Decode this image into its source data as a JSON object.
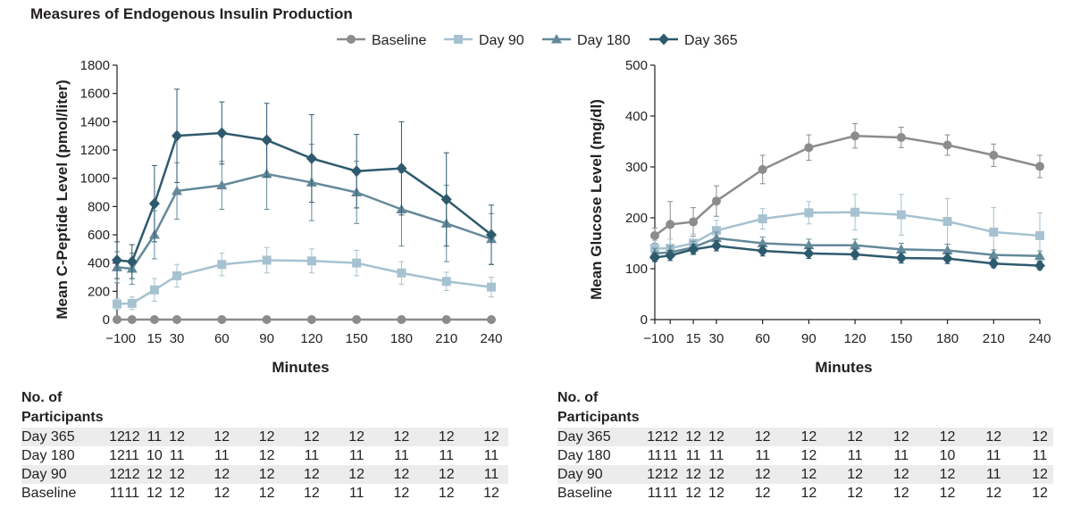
{
  "title": "Measures of Endogenous Insulin Production",
  "legend": [
    {
      "name": "Baseline",
      "color": "#8c8c8c",
      "marker": "circle"
    },
    {
      "name": "Day 90",
      "color": "#a6c2d0",
      "marker": "square"
    },
    {
      "name": "Day 180",
      "color": "#64899a",
      "marker": "triangle"
    },
    {
      "name": "Day 365",
      "color": "#2e5a6e",
      "marker": "diamond"
    }
  ],
  "chart_data": [
    {
      "id": "cpeptide",
      "type": "line",
      "title": "",
      "xlabel": "Minutes",
      "ylabel": "Mean C-Peptide Level (pmol/liter)",
      "x": [
        -10,
        0,
        15,
        30,
        60,
        90,
        120,
        150,
        180,
        210,
        240
      ],
      "x_tick_labels": [
        "−10",
        "0",
        "15",
        "30",
        "60",
        "90",
        "120",
        "150",
        "180",
        "210",
        "240"
      ],
      "xlim": [
        -10,
        240
      ],
      "ylim": [
        0,
        1800
      ],
      "y_ticks": [
        0,
        200,
        400,
        600,
        800,
        1000,
        1200,
        1400,
        1600,
        1800
      ],
      "series": [
        {
          "name": "Baseline",
          "values": [
            0,
            0,
            0,
            0,
            0,
            0,
            0,
            0,
            0,
            0,
            0
          ],
          "err": [
            0,
            0,
            0,
            0,
            0,
            0,
            0,
            0,
            0,
            0,
            0
          ]
        },
        {
          "name": "Day 90",
          "values": [
            110,
            115,
            210,
            310,
            390,
            420,
            415,
            400,
            330,
            270,
            230
          ],
          "err": [
            40,
            45,
            80,
            80,
            80,
            90,
            85,
            90,
            80,
            65,
            70
          ]
        },
        {
          "name": "Day 180",
          "values": [
            370,
            360,
            600,
            910,
            950,
            1030,
            970,
            900,
            780,
            680,
            570
          ],
          "err": [
            110,
            110,
            170,
            200,
            170,
            250,
            270,
            220,
            260,
            270,
            180
          ]
        },
        {
          "name": "Day 365",
          "values": [
            420,
            410,
            820,
            1300,
            1320,
            1270,
            1140,
            1050,
            1070,
            850,
            600
          ],
          "err": [
            130,
            120,
            270,
            330,
            220,
            260,
            310,
            260,
            330,
            330,
            210
          ]
        }
      ],
      "participants": {
        "title": [
          "No. of",
          "Participants"
        ],
        "rows": [
          {
            "label": "Day 365",
            "values": [
              "12",
              "12",
              "11",
              "12",
              "12",
              "12",
              "12",
              "12",
              "12",
              "12",
              "12"
            ]
          },
          {
            "label": "Day 180",
            "values": [
              "12",
              "11",
              "10",
              "11",
              "11",
              "12",
              "11",
              "11",
              "11",
              "11",
              "11"
            ]
          },
          {
            "label": "Day 90",
            "values": [
              "12",
              "12",
              "12",
              "12",
              "12",
              "12",
              "12",
              "12",
              "12",
              "12",
              "11"
            ]
          },
          {
            "label": "Baseline",
            "values": [
              "11",
              "11",
              "12",
              "12",
              "12",
              "12",
              "12",
              "11",
              "12",
              "12",
              "12"
            ]
          }
        ]
      }
    },
    {
      "id": "glucose",
      "type": "line",
      "title": "",
      "xlabel": "Minutes",
      "ylabel": "Mean Glucose Level (mg/dl)",
      "x": [
        -10,
        0,
        15,
        30,
        60,
        90,
        120,
        150,
        180,
        210,
        240
      ],
      "x_tick_labels": [
        "−10",
        "0",
        "15",
        "30",
        "60",
        "90",
        "120",
        "150",
        "180",
        "210",
        "240"
      ],
      "xlim": [
        -10,
        240
      ],
      "ylim": [
        0,
        500
      ],
      "y_ticks": [
        0,
        100,
        200,
        300,
        400,
        500
      ],
      "series": [
        {
          "name": "Baseline",
          "values": [
            165,
            187,
            192,
            233,
            295,
            338,
            361,
            358,
            343,
            323,
            301
          ],
          "err": [
            15,
            45,
            28,
            30,
            28,
            25,
            24,
            20,
            20,
            22,
            22
          ]
        },
        {
          "name": "Day 90",
          "values": [
            140,
            140,
            150,
            175,
            198,
            210,
            211,
            206,
            193,
            172,
            165
          ],
          "err": [
            15,
            18,
            18,
            20,
            20,
            22,
            35,
            40,
            45,
            48,
            45
          ]
        },
        {
          "name": "Day 180",
          "values": [
            130,
            132,
            142,
            160,
            150,
            146,
            146,
            138,
            136,
            127,
            125
          ],
          "err": [
            10,
            12,
            12,
            12,
            12,
            12,
            12,
            12,
            12,
            10,
            10
          ]
        },
        {
          "name": "Day 365",
          "values": [
            122,
            126,
            138,
            145,
            135,
            130,
            128,
            121,
            120,
            110,
            106
          ],
          "err": [
            8,
            10,
            10,
            10,
            10,
            10,
            10,
            10,
            10,
            8,
            8
          ]
        }
      ],
      "participants": {
        "title": [
          "No. of",
          "Participants"
        ],
        "rows": [
          {
            "label": "Day 365",
            "values": [
              "12",
              "12",
              "12",
              "12",
              "12",
              "12",
              "12",
              "12",
              "12",
              "12",
              "12"
            ]
          },
          {
            "label": "Day 180",
            "values": [
              "11",
              "11",
              "11",
              "11",
              "11",
              "12",
              "11",
              "11",
              "10",
              "11",
              "11"
            ]
          },
          {
            "label": "Day 90",
            "values": [
              "12",
              "12",
              "12",
              "12",
              "12",
              "12",
              "12",
              "12",
              "12",
              "11",
              "12"
            ]
          },
          {
            "label": "Baseline",
            "values": [
              "11",
              "11",
              "12",
              "12",
              "12",
              "12",
              "12",
              "12",
              "12",
              "12",
              "12"
            ]
          }
        ]
      }
    }
  ]
}
